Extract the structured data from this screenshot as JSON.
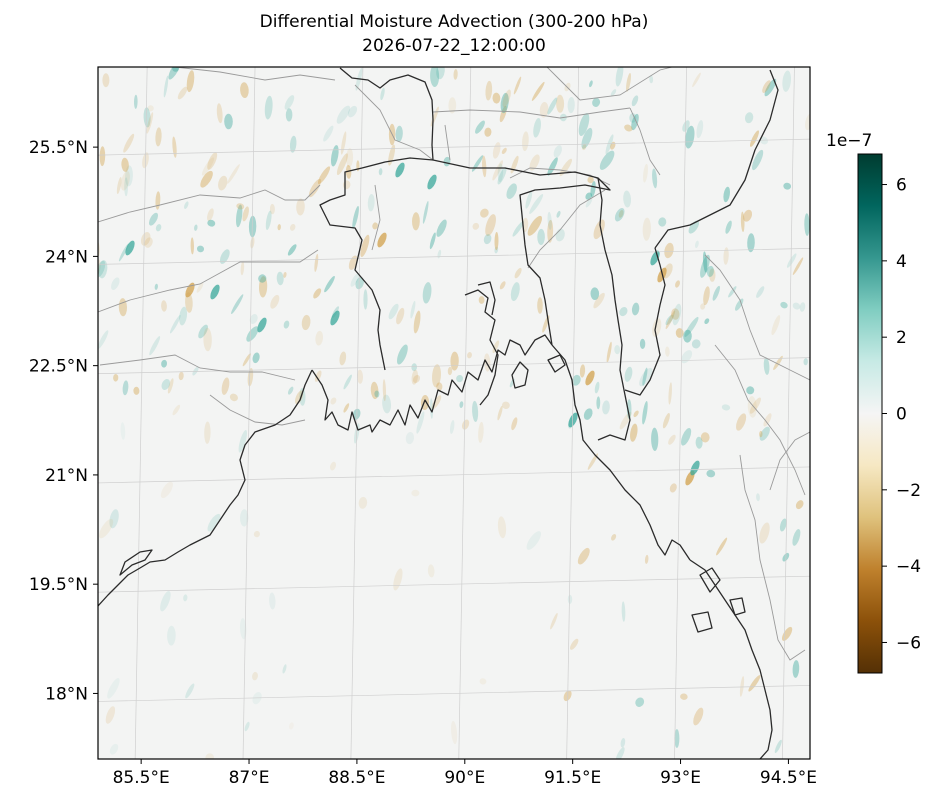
{
  "title": "Differential Moisture Advection (300-200 hPa)",
  "subtitle": "2026-07-22_12:00:00",
  "map": {
    "lon_ticks": [
      "85.5°E",
      "87°E",
      "88.5°E",
      "90°E",
      "91.5°E",
      "93°E",
      "94.5°E"
    ],
    "lat_ticks": [
      "25.5°N",
      "24°N",
      "22.5°N",
      "21°N",
      "19.5°N",
      "18°N"
    ],
    "lon_values": [
      85.5,
      87,
      88.5,
      90,
      91.5,
      93,
      94.5
    ],
    "lat_values": [
      25.5,
      24,
      22.5,
      21,
      19.5,
      18
    ],
    "lon_range": [
      84.9,
      94.8
    ],
    "lat_range": [
      17.1,
      26.6
    ],
    "gridlines": true,
    "field_colors": {
      "positive": "#3aa89b",
      "negative": "#d2a24c",
      "background": "#f3f4f3",
      "coast": "#2b2b2b",
      "border": "#9a9a9a"
    }
  },
  "colorbar": {
    "exponent_label": "1e−7",
    "ticks": [
      "6",
      "4",
      "2",
      "0",
      "−2",
      "−4",
      "−6"
    ],
    "tick_values": [
      6,
      4,
      2,
      0,
      -2,
      -4,
      -6
    ],
    "range": [
      -6.8,
      6.8
    ],
    "colormap": [
      "#543005",
      "#8c510a",
      "#bf812d",
      "#dfc27d",
      "#f6e8c3",
      "#f5f5f5",
      "#c7eae5",
      "#80cdc1",
      "#35978f",
      "#01665e",
      "#003c30"
    ]
  }
}
